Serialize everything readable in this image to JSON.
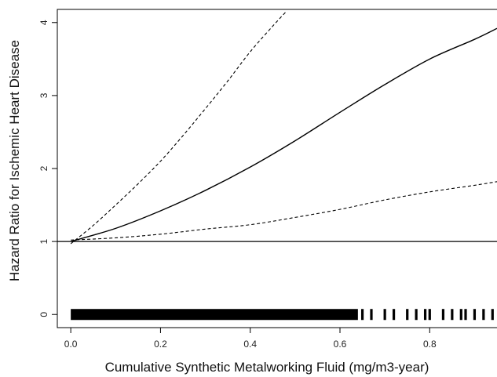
{
  "chart_data": {
    "type": "line",
    "title": "",
    "xlabel": "Cumulative Synthetic Metalworking Fluid (mg/m3-year)",
    "ylabel": "Hazard Ratio for Ischemic Heart Disease",
    "xlim": [
      -0.03,
      0.95
    ],
    "ylim": [
      -0.18,
      4.18
    ],
    "xticks": [
      0.0,
      0.2,
      0.4,
      0.6,
      0.8
    ],
    "xtick_labels": [
      "0.0",
      "0.2",
      "0.4",
      "0.6",
      "0.8"
    ],
    "yticks": [
      0,
      1,
      2,
      3,
      4
    ],
    "ytick_labels": [
      "0",
      "1",
      "2",
      "3",
      "4"
    ],
    "reference_line_y": 1,
    "grid": false,
    "series": [
      {
        "role": "estimate",
        "style": "solid",
        "x": [
          0.0,
          0.1,
          0.2,
          0.3,
          0.4,
          0.5,
          0.6,
          0.7,
          0.8,
          0.9,
          0.95
        ],
        "y": [
          1.0,
          1.18,
          1.42,
          1.7,
          2.02,
          2.38,
          2.77,
          3.15,
          3.5,
          3.77,
          3.92
        ]
      },
      {
        "role": "upper-bound",
        "style": "dashed",
        "x": [
          0.0,
          0.05,
          0.1,
          0.15,
          0.2,
          0.25,
          0.3,
          0.35,
          0.4,
          0.45,
          0.48
        ],
        "y": [
          0.97,
          1.22,
          1.5,
          1.79,
          2.1,
          2.45,
          2.82,
          3.2,
          3.6,
          3.95,
          4.15
        ]
      },
      {
        "role": "lower-bound",
        "style": "dashed",
        "x": [
          0.0,
          0.1,
          0.2,
          0.3,
          0.4,
          0.5,
          0.6,
          0.7,
          0.8,
          0.9,
          0.95
        ],
        "y": [
          1.02,
          1.05,
          1.1,
          1.17,
          1.23,
          1.33,
          1.44,
          1.57,
          1.68,
          1.77,
          1.82
        ]
      }
    ],
    "rug": {
      "y": 0,
      "dense_range": [
        0.0,
        0.64
      ],
      "sparse_x": [
        0.65,
        0.67,
        0.7,
        0.72,
        0.75,
        0.77,
        0.79,
        0.8,
        0.83,
        0.85,
        0.87,
        0.88,
        0.9,
        0.92,
        0.94
      ]
    }
  }
}
